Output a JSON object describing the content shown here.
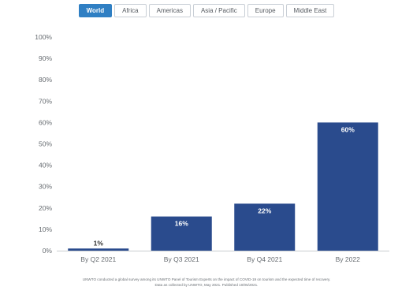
{
  "tabs": [
    {
      "label": "World",
      "active": true
    },
    {
      "label": "Africa",
      "active": false
    },
    {
      "label": "Americas",
      "active": false
    },
    {
      "label": "Asia / Pacific",
      "active": false
    },
    {
      "label": "Europe",
      "active": false
    },
    {
      "label": "Middle East",
      "active": false
    }
  ],
  "colors": {
    "bar": "#2a4b8d",
    "accent": "#2f7fc3"
  },
  "chart_data": {
    "type": "bar",
    "categories": [
      "By Q2 2021",
      "By Q3 2021",
      "By Q4 2021",
      "By 2022"
    ],
    "values": [
      1,
      16,
      22,
      60
    ],
    "data_labels": [
      "1%",
      "16%",
      "22%",
      "60%"
    ],
    "y_ticks": [
      "0%",
      "10%",
      "20%",
      "30%",
      "40%",
      "50%",
      "60%",
      "70%",
      "80%",
      "90%",
      "100%"
    ],
    "ylim": [
      0,
      100
    ],
    "grid": false,
    "title": "",
    "xlabel": "",
    "ylabel": ""
  },
  "footnote": {
    "line1": "UNWTO conducted a global survey among its UNWTO Panel of Tourism Experts on the impact of COVID-19 on tourism and the expected time of recovery.",
    "line2": "Data as collected by UNWTO, May 2021. Published 10/05/2021."
  }
}
